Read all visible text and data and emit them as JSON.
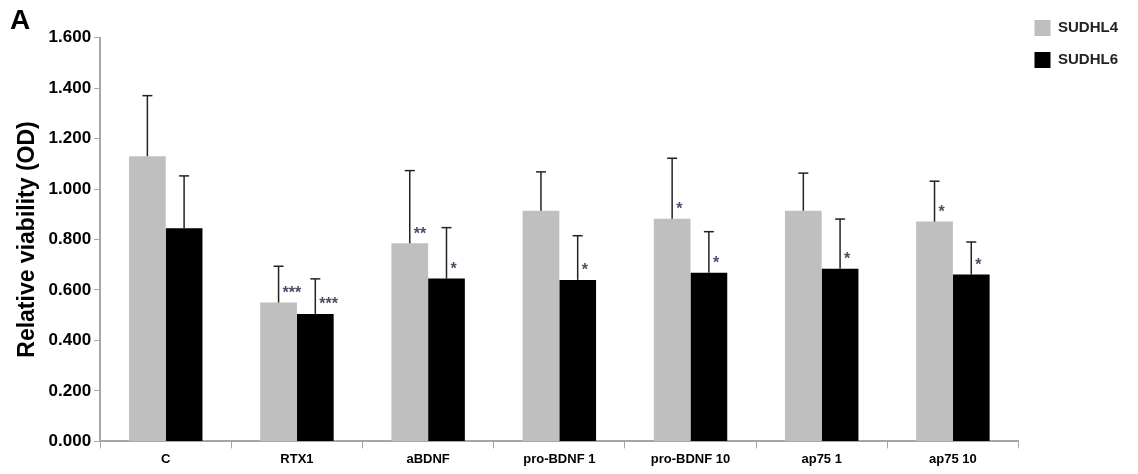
{
  "chart_data": {
    "type": "bar",
    "title": "A",
    "ylabel": "Relative viability (OD)",
    "categories": [
      "C",
      "RTX1",
      "aBDNF",
      "pro-BDNF 1",
      "pro-BDNF 10",
      "ap75 1",
      "ap75 10"
    ],
    "series": [
      {
        "name": "SUDHL4",
        "color": "#bfbfbf",
        "values": [
          1.13,
          0.55,
          0.785,
          0.914,
          0.882,
          0.914,
          0.871
        ],
        "errors": [
          [
            1.13,
            1.37
          ],
          [
            0.55,
            0.694
          ],
          [
            0.785,
            1.073
          ],
          [
            0.914,
            1.068
          ],
          [
            0.882,
            1.122
          ],
          [
            0.914,
            1.063
          ],
          [
            0.871,
            1.031
          ]
        ],
        "value_labels": [
          null,
          "***",
          "**",
          null,
          "*",
          null,
          "*"
        ]
      },
      {
        "name": "SUDHL6",
        "color": "#000000",
        "values": [
          0.845,
          0.505,
          0.645,
          0.64,
          0.668,
          0.684,
          0.661
        ],
        "errors": [
          [
            0.845,
            1.052
          ],
          [
            0.505,
            0.644
          ],
          [
            0.645,
            0.847
          ],
          [
            0.64,
            0.815
          ],
          [
            0.668,
            0.831
          ],
          [
            0.684,
            0.881
          ],
          [
            0.661,
            0.79
          ]
        ],
        "value_labels": [
          null,
          "***",
          "*",
          "*",
          "*",
          "*",
          "*"
        ]
      }
    ],
    "ylim": [
      0,
      1.6
    ],
    "yticks": [
      {
        "value": 0,
        "label": "0.000"
      },
      {
        "value": 0.2,
        "label": "0.200"
      },
      {
        "value": 0.4,
        "label": "0.400"
      },
      {
        "value": 0.6,
        "label": "0.600"
      },
      {
        "value": 0.8,
        "label": "0.800"
      },
      {
        "value": 1,
        "label": "1.000"
      },
      {
        "value": 1.2,
        "label": "1.200"
      },
      {
        "value": 1.4,
        "label": "1.400"
      },
      {
        "value": 1.6,
        "label": "1.600"
      }
    ],
    "grid": false,
    "legend": "top right"
  }
}
